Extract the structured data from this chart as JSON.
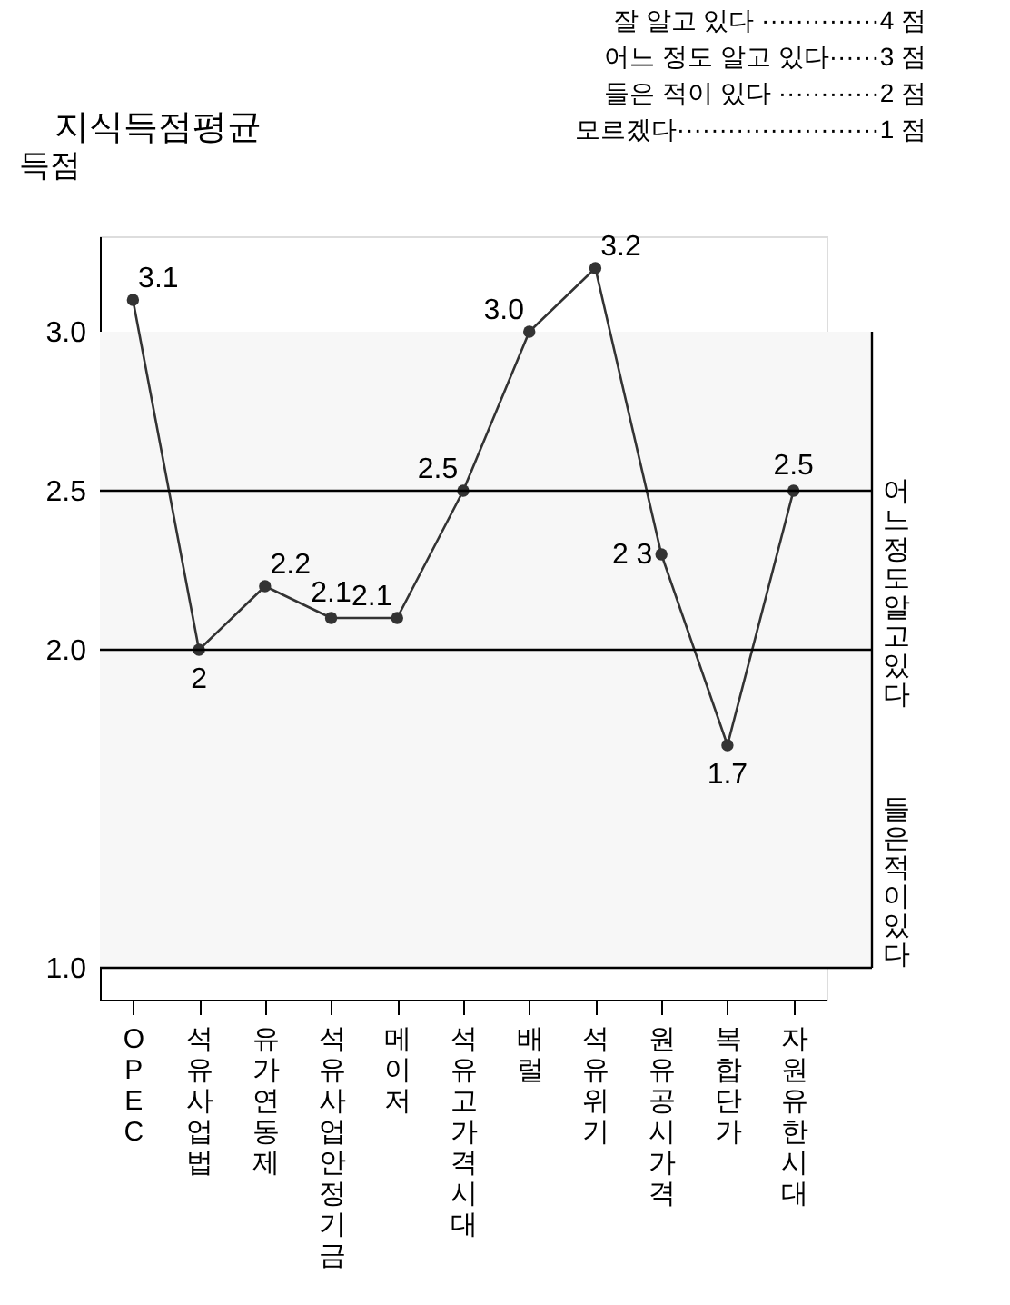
{
  "chart_data": {
    "type": "line",
    "title": "지식득점평균",
    "ylabel": "득점",
    "categories": [
      "OPEC",
      "석유사업법",
      "유가연동제",
      "석유사업안정기금",
      "메이저",
      "석유고가격시대",
      "배럴",
      "석유위기",
      "원유공시가격",
      "복합단가",
      "자원유한시대"
    ],
    "series": [
      {
        "color": "#333333",
        "values": [
          3.1,
          2.0,
          2.2,
          2.1,
          2.1,
          2.5,
          3.0,
          3.2,
          2.3,
          1.7,
          2.5
        ],
        "value_labels": [
          "3.1",
          "2",
          "2.2",
          "2.1",
          "2.1",
          "2.5",
          "3.0",
          "3.2",
          "2 3",
          "1.7",
          "2.5"
        ]
      }
    ],
    "ylim": [
      0.9,
      3.3
    ],
    "yticks": [
      {
        "value": 1.0,
        "label": "1.0"
      },
      {
        "value": 2.0,
        "label": "2.0"
      },
      2.5,
      {
        "value": 3.0,
        "label": "3.0"
      }
    ],
    "ref_lines": [
      {
        "axis": "y",
        "value": 1.0
      },
      {
        "axis": "y",
        "value": 2.0
      },
      {
        "axis": "y",
        "value": 2.5
      }
    ],
    "bands": [
      {
        "axis": "y",
        "from": 2.0,
        "to": 3.0,
        "label": "어느정도알고있다"
      },
      {
        "axis": "y",
        "from": 1.0,
        "to": 2.0,
        "label": "들은적이있다"
      }
    ],
    "annotations": [
      "잘 알고 있다 ··············4 점",
      "어느 정도 알고 있다······3 점",
      "들은 적이 있다 ············2 점",
      "모르겠다························1 점"
    ],
    "marker": "circle",
    "line_style": "solid",
    "grid": false
  }
}
